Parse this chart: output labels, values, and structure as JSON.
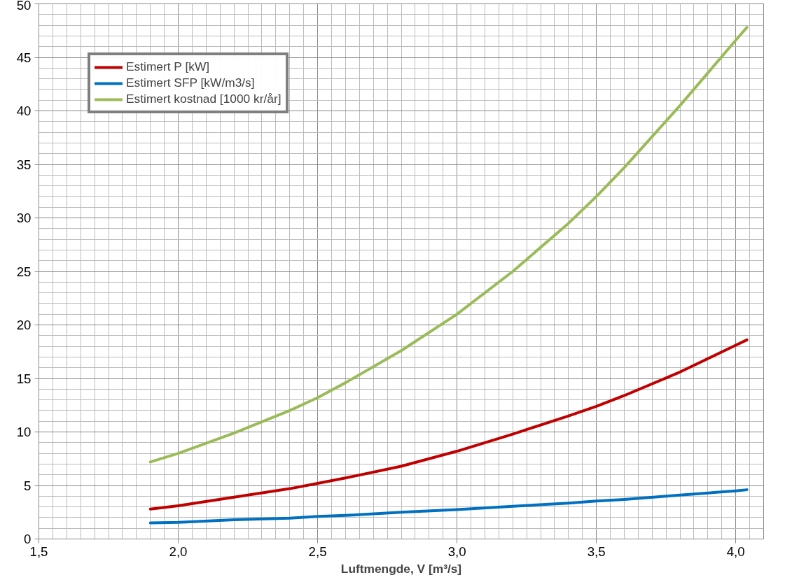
{
  "chart_data": {
    "type": "line",
    "xlabel": "Luftmengde, V [m³/s]",
    "x": [
      1.9,
      2.0,
      2.2,
      2.4,
      2.5,
      2.6,
      2.8,
      3.0,
      3.2,
      3.4,
      3.5,
      3.6,
      3.8,
      4.0,
      4.04
    ],
    "series": [
      {
        "name": "Estimert P [kW]",
        "color": "#c00000",
        "values": [
          2.8,
          3.1,
          3.9,
          4.7,
          5.2,
          5.7,
          6.8,
          8.2,
          9.8,
          11.5,
          12.4,
          13.4,
          15.6,
          18.1,
          18.6
        ]
      },
      {
        "name": "Estimert SFP [kW/m3/s]",
        "color": "#0070c0",
        "values": [
          1.5,
          1.55,
          1.8,
          1.95,
          2.1,
          2.2,
          2.5,
          2.75,
          3.05,
          3.35,
          3.55,
          3.7,
          4.1,
          4.5,
          4.6
        ]
      },
      {
        "name": "Estimert kostnad [1000 kr/år]",
        "color": "#9bbb59",
        "values": [
          7.2,
          8.0,
          9.9,
          12.0,
          13.2,
          14.6,
          17.6,
          21.0,
          25.0,
          29.5,
          32.0,
          34.7,
          40.5,
          46.6,
          47.8
        ]
      }
    ],
    "xlim": [
      1.5,
      4.1
    ],
    "ylim": [
      0,
      50
    ],
    "xticks": [
      {
        "value": 1.5,
        "label": "1,5"
      },
      {
        "value": 2.0,
        "label": "2,0"
      },
      {
        "value": 2.5,
        "label": "2,5"
      },
      {
        "value": 3.0,
        "label": "3,0"
      },
      {
        "value": 3.5,
        "label": "3,5"
      },
      {
        "value": 4.0,
        "label": "4,0"
      }
    ],
    "yticks": [
      0,
      5,
      10,
      15,
      20,
      25,
      30,
      35,
      40,
      45,
      50
    ],
    "grid": true,
    "legend": "top left",
    "marker": "none",
    "line_style": "solid"
  }
}
